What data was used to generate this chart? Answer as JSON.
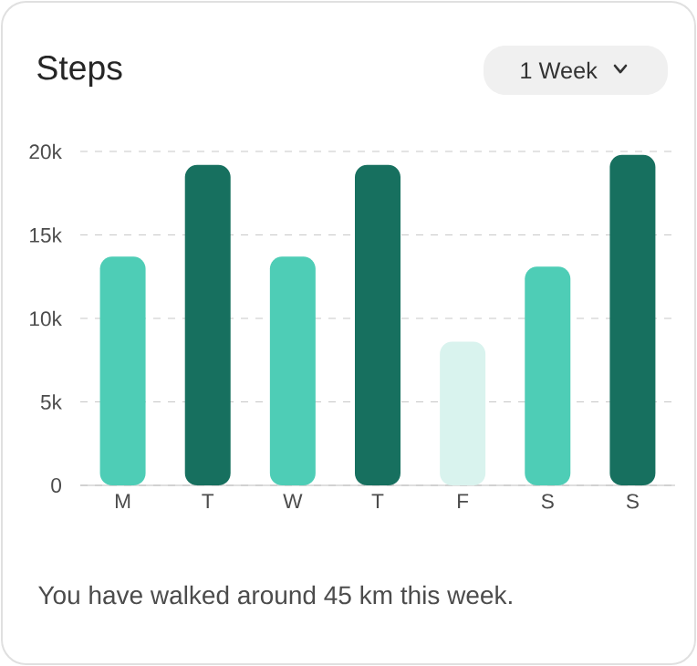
{
  "chart_data": {
    "type": "bar",
    "title": "Steps",
    "categories": [
      "M",
      "T",
      "W",
      "T",
      "F",
      "S",
      "S"
    ],
    "values": [
      13700,
      19200,
      13700,
      19200,
      8600,
      13100,
      19800
    ],
    "colors": [
      "#4ecdb6",
      "#17705f",
      "#4ecdb6",
      "#17705f",
      "#d9f3ee",
      "#4ecdb6",
      "#17705f"
    ],
    "ylim": [
      0,
      20000
    ],
    "yticks": [
      {
        "value": 0,
        "label": "0"
      },
      {
        "value": 5000,
        "label": "5k"
      },
      {
        "value": 10000,
        "label": "10k"
      },
      {
        "value": 15000,
        "label": "15k"
      },
      {
        "value": 20000,
        "label": "20k"
      }
    ],
    "grid": "y",
    "annotations": [
      "1 Week",
      "You have walked around 45 km this week."
    ]
  }
}
